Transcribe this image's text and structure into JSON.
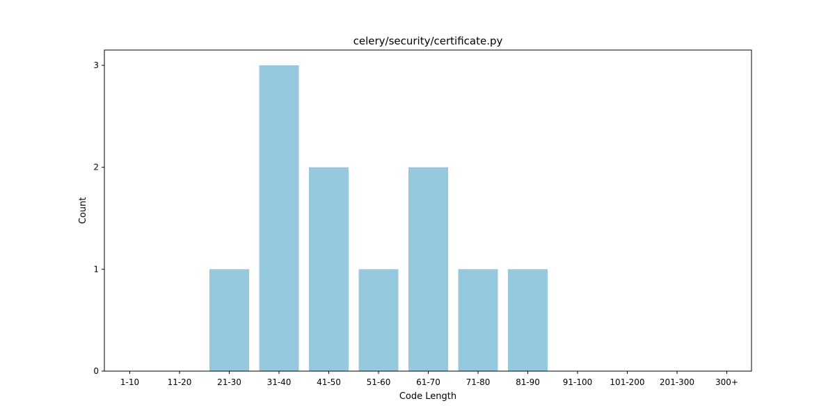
{
  "chart_data": {
    "type": "bar",
    "title": "celery/security/certificate.py",
    "xlabel": "Code Length",
    "ylabel": "Count",
    "categories": [
      "1-10",
      "11-20",
      "21-30",
      "31-40",
      "41-50",
      "51-60",
      "61-70",
      "71-80",
      "81-90",
      "91-100",
      "101-200",
      "201-300",
      "300+"
    ],
    "values": [
      0,
      0,
      1,
      3,
      2,
      1,
      2,
      1,
      1,
      0,
      0,
      0,
      0
    ],
    "ylim": [
      0,
      3.15
    ],
    "yticks": [
      0,
      1,
      2,
      3
    ],
    "grid": false,
    "bar_color": "#96c9de"
  }
}
